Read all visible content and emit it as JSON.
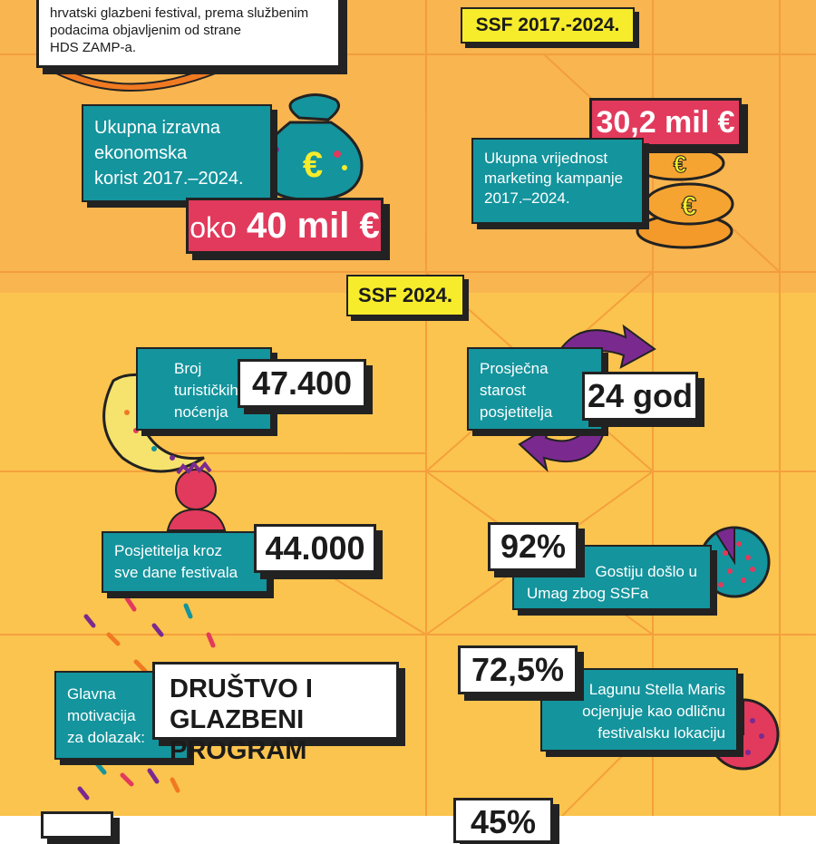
{
  "intro": {
    "lines": [
      "hrvatski glazbeni festival, prema službenim",
      "podacima objavljenim od strane",
      "HDS ZAMP-a."
    ]
  },
  "period_badge": "SSF 2017.-2024.",
  "economic": {
    "label_lines": [
      "Ukupna izravna",
      "ekonomska",
      "korist 2017.–2024."
    ],
    "value_prefix": "oko",
    "value_main": "40 mil €"
  },
  "marketing": {
    "value": "30,2 mil €",
    "label_lines": [
      "Ukupna vrijednost",
      "marketing kampanje",
      "2017.–2024."
    ]
  },
  "year_badge": "SSF 2024.",
  "nights": {
    "label_lines": [
      "Broj",
      "turističkih",
      "noćenja"
    ],
    "value": "47.400"
  },
  "age": {
    "label_lines": [
      "Prosječna",
      "starost",
      "posjetitelja"
    ],
    "value": "24 god"
  },
  "visitors": {
    "label_lines": [
      "Posjetitelja kroz",
      "sve dane festivala"
    ],
    "value": "44.000"
  },
  "guests": {
    "value": "92%",
    "label_lines": [
      "Gostiju došlo u",
      "Umag zbog SSFa"
    ]
  },
  "motivation": {
    "label_lines": [
      "Glavna",
      "motivacija",
      "za dolazak:"
    ],
    "value_lines": [
      "DRUŠTVO I",
      "GLAZBENI PROGRAM"
    ]
  },
  "lagoon": {
    "value": "72,5%",
    "label_lines": [
      "Lagunu Stella Maris",
      "ocjenjuje kao odličnu",
      "festivalsku lokaciju"
    ]
  },
  "next_value_partial": "45%",
  "pie_shares": {
    "guests_pct": 92,
    "lagoon_pct": 72.5
  },
  "colors": {
    "teal": "#14949d",
    "pink": "#e23a5c",
    "yellow": "#f6ec2b",
    "purple": "#7a2a8f",
    "orange_bg": "#f8b550",
    "yellow_bg": "#fbc44e"
  },
  "icons": [
    "money-bag-icon",
    "coin-stack-icon",
    "moon-icon",
    "person-icon",
    "circular-arrows-icon",
    "confetti-icon",
    "pie-chart-icon"
  ]
}
